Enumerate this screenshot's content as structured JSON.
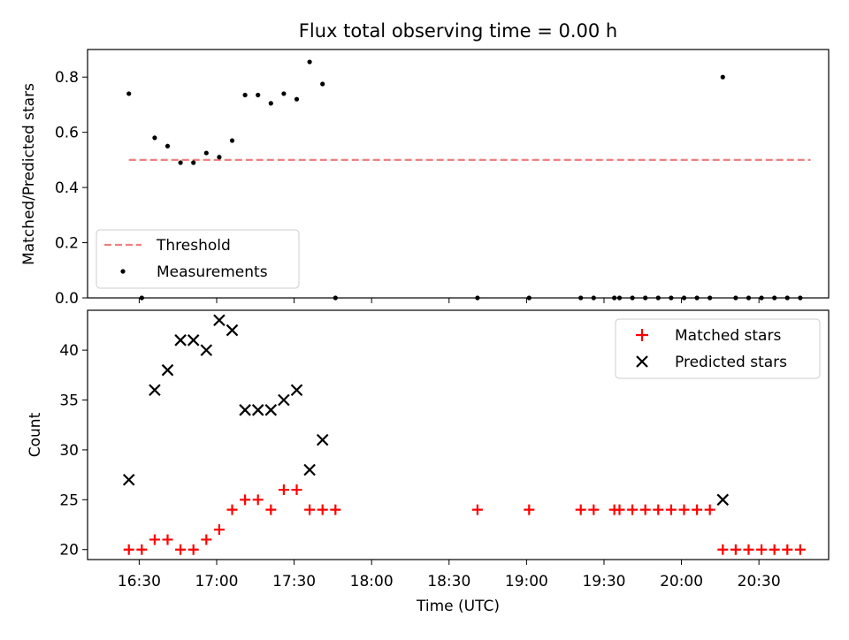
{
  "chart_data": [
    {
      "type": "scatter",
      "title": "Flux total observing time = 0.00 h",
      "xlabel": "",
      "ylabel": "Matched/Predicted stars",
      "ylim": [
        0,
        0.9
      ],
      "yticks": [
        "0.0",
        "0.2",
        "0.4",
        "0.6",
        "0.8"
      ],
      "grid": false,
      "legend_location": "lower-left",
      "threshold": {
        "name": "Threshold",
        "value": 0.5,
        "x_start": "16:26",
        "x_end": "20:50",
        "color": "#f08080",
        "style": "dashed"
      },
      "series": [
        {
          "name": "Measurements",
          "color": "#000000",
          "marker": "dot",
          "points": [
            [
              "16:26",
              0.74
            ],
            [
              "16:31",
              0.0
            ],
            [
              "16:36",
              0.58
            ],
            [
              "16:41",
              0.55
            ],
            [
              "16:46",
              0.49
            ],
            [
              "16:51",
              0.49
            ],
            [
              "16:56",
              0.525
            ],
            [
              "17:01",
              0.51
            ],
            [
              "17:06",
              0.57
            ],
            [
              "17:11",
              0.735
            ],
            [
              "17:16",
              0.735
            ],
            [
              "17:21",
              0.705
            ],
            [
              "17:26",
              0.74
            ],
            [
              "17:31",
              0.72
            ],
            [
              "17:36",
              0.855
            ],
            [
              "17:41",
              0.775
            ],
            [
              "17:46",
              0.0
            ],
            [
              "18:41",
              0.0
            ],
            [
              "19:01",
              0.0
            ],
            [
              "19:21",
              0.0
            ],
            [
              "19:26",
              0.0
            ],
            [
              "19:34",
              0.0
            ],
            [
              "19:36",
              0.0
            ],
            [
              "19:41",
              0.0
            ],
            [
              "19:46",
              0.0
            ],
            [
              "19:51",
              0.0
            ],
            [
              "19:56",
              0.0
            ],
            [
              "20:01",
              0.0
            ],
            [
              "20:06",
              0.0
            ],
            [
              "20:11",
              0.0
            ],
            [
              "20:16",
              0.8
            ],
            [
              "20:21",
              0.0
            ],
            [
              "20:26",
              0.0
            ],
            [
              "20:31",
              0.0
            ],
            [
              "20:36",
              0.0
            ],
            [
              "20:41",
              0.0
            ],
            [
              "20:46",
              0.0
            ]
          ]
        }
      ]
    },
    {
      "type": "scatter",
      "title": "",
      "xlabel": "Time (UTC)",
      "ylabel": "Count",
      "xlim": [
        "16:10",
        "20:57"
      ],
      "ylim": [
        19,
        44
      ],
      "xticks": [
        "16:30",
        "17:00",
        "17:30",
        "18:00",
        "18:30",
        "19:00",
        "19:30",
        "20:00",
        "20:30"
      ],
      "yticks": [
        "20",
        "25",
        "30",
        "35",
        "40"
      ],
      "grid": false,
      "legend_location": "top-right",
      "series": [
        {
          "name": "Matched stars",
          "color": "#ff0000",
          "marker": "plus",
          "points": [
            [
              "16:26",
              20
            ],
            [
              "16:31",
              20
            ],
            [
              "16:36",
              21
            ],
            [
              "16:41",
              21
            ],
            [
              "16:46",
              20
            ],
            [
              "16:51",
              20
            ],
            [
              "16:56",
              21
            ],
            [
              "17:01",
              22
            ],
            [
              "17:06",
              24
            ],
            [
              "17:11",
              25
            ],
            [
              "17:16",
              25
            ],
            [
              "17:21",
              24
            ],
            [
              "17:26",
              26
            ],
            [
              "17:31",
              26
            ],
            [
              "17:36",
              24
            ],
            [
              "17:41",
              24
            ],
            [
              "17:46",
              24
            ],
            [
              "18:41",
              24
            ],
            [
              "19:01",
              24
            ],
            [
              "19:21",
              24
            ],
            [
              "19:26",
              24
            ],
            [
              "19:34",
              24
            ],
            [
              "19:36",
              24
            ],
            [
              "19:41",
              24
            ],
            [
              "19:46",
              24
            ],
            [
              "19:51",
              24
            ],
            [
              "19:56",
              24
            ],
            [
              "20:01",
              24
            ],
            [
              "20:06",
              24
            ],
            [
              "20:11",
              24
            ],
            [
              "20:16",
              20
            ],
            [
              "20:21",
              20
            ],
            [
              "20:26",
              20
            ],
            [
              "20:31",
              20
            ],
            [
              "20:36",
              20
            ],
            [
              "20:41",
              20
            ],
            [
              "20:46",
              20
            ]
          ]
        },
        {
          "name": "Predicted stars",
          "color": "#000000",
          "marker": "x",
          "points": [
            [
              "16:26",
              27
            ],
            [
              "16:36",
              36
            ],
            [
              "16:41",
              38
            ],
            [
              "16:46",
              41
            ],
            [
              "16:51",
              41
            ],
            [
              "16:56",
              40
            ],
            [
              "17:01",
              43
            ],
            [
              "17:06",
              42
            ],
            [
              "17:11",
              34
            ],
            [
              "17:16",
              34
            ],
            [
              "17:21",
              34
            ],
            [
              "17:26",
              35
            ],
            [
              "17:31",
              36
            ],
            [
              "17:36",
              28
            ],
            [
              "17:41",
              31
            ],
            [
              "20:16",
              25
            ]
          ]
        }
      ]
    }
  ]
}
